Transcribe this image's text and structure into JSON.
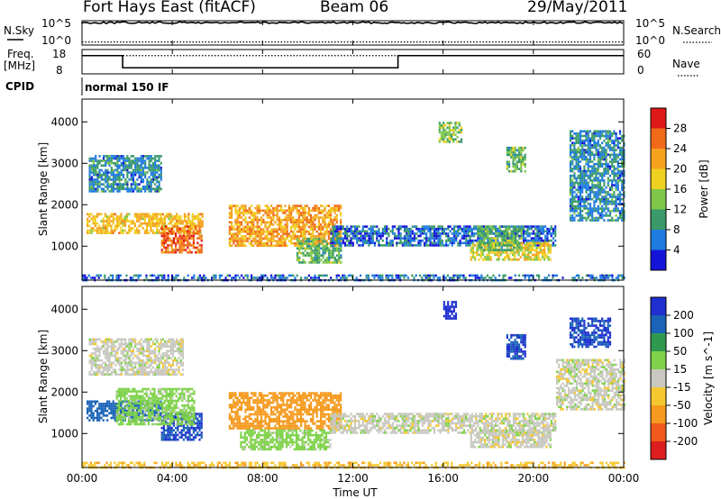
{
  "header": {
    "station": "Fort Hays East (fitACF)",
    "beam": "Beam 06",
    "date": "29/May/2011"
  },
  "status_panels": {
    "nsky_label": "N.Sky",
    "nsky_ticks": [
      "10^5",
      "10^0"
    ],
    "nsearch_label": "N.Search",
    "nsearch_ticks": [
      "10^5",
      "10^0"
    ],
    "freq_label_line1": "Freq.",
    "freq_label_line2": "[MHz]",
    "freq_ticks": [
      "18",
      "8"
    ],
    "nave_label": "Nave",
    "nave_ticks": [
      "60",
      "0"
    ],
    "cpid_label": "CPID",
    "cpid_value": "normal 150 IF",
    "freq_series": {
      "segments": [
        {
          "start_hour": 0.0,
          "end_hour": 1.8,
          "mhz": 15.5
        },
        {
          "start_hour": 1.8,
          "end_hour": 14.0,
          "mhz": 10.5
        },
        {
          "start_hour": 14.0,
          "end_hour": 24.0,
          "mhz": 15.5
        }
      ]
    },
    "nave_level": 45,
    "nsky_level": 0.92,
    "nsearch_level": 0.05
  },
  "axes": {
    "x_ticks": [
      "00:00",
      "04:00",
      "08:00",
      "12:00",
      "16:00",
      "20:00",
      "00:00"
    ],
    "x_label": "Time UT",
    "y_label": "Slant Range [km]",
    "y_ticks": [
      "1000",
      "2000",
      "3000",
      "4000"
    ]
  },
  "colorbars": {
    "power": {
      "label": "Power [dB]",
      "ticks": [
        "4",
        "8",
        "12",
        "16",
        "20",
        "24",
        "28"
      ],
      "colors": [
        "#1414d8",
        "#1e7be0",
        "#3a9a6a",
        "#7fc74a",
        "#f0d020",
        "#f5a21e",
        "#f06a1a",
        "#e01818"
      ]
    },
    "velocity": {
      "label": "Velocity [m s^-1]",
      "ticks": [
        "200",
        "100",
        "50",
        "15",
        "-15",
        "-50",
        "-100",
        "-200"
      ],
      "colors": [
        "#1f2fd0",
        "#1a63b8",
        "#2f9a4f",
        "#7fd24a",
        "#c8c8c0",
        "#f5c830",
        "#f59a1e",
        "#f05a1a",
        "#dc1e1e"
      ]
    }
  },
  "chart_data": [
    {
      "type": "heatmap",
      "title": "Power [dB]",
      "xlabel": "Time UT",
      "ylabel": "Slant Range [km]",
      "xlim": [
        "00:00",
        "24:00"
      ],
      "ylim": [
        180,
        4550
      ],
      "regions": [
        {
          "t0": 0.0,
          "t1": 24.0,
          "r0": 180,
          "r1": 320,
          "power": 6
        },
        {
          "t0": 0.2,
          "t1": 5.3,
          "r0": 1300,
          "r1": 1800,
          "power": 20
        },
        {
          "t0": 3.5,
          "t1": 5.3,
          "r0": 850,
          "r1": 1500,
          "power": 26
        },
        {
          "t0": 0.3,
          "t1": 3.5,
          "r0": 2300,
          "r1": 3200,
          "power": 8
        },
        {
          "t0": 6.5,
          "t1": 11.5,
          "r0": 1000,
          "r1": 2000,
          "power": 22
        },
        {
          "t0": 9.5,
          "t1": 11.5,
          "r0": 600,
          "r1": 1200,
          "power": 12
        },
        {
          "t0": 11.0,
          "t1": 21.0,
          "r0": 1000,
          "r1": 1500,
          "power": 6
        },
        {
          "t0": 17.2,
          "t1": 20.8,
          "r0": 700,
          "r1": 1100,
          "power": 18
        },
        {
          "t0": 17.5,
          "t1": 19.5,
          "r0": 900,
          "r1": 1500,
          "power": 12
        },
        {
          "t0": 15.8,
          "t1": 16.8,
          "r0": 3500,
          "r1": 4000,
          "power": 14
        },
        {
          "t0": 18.8,
          "t1": 19.6,
          "r0": 2800,
          "r1": 3400,
          "power": 12
        },
        {
          "t0": 21.6,
          "t1": 24.0,
          "r0": 1600,
          "r1": 3800,
          "power": 8
        }
      ]
    },
    {
      "type": "heatmap",
      "title": "Velocity [m s^-1]",
      "xlabel": "Time UT",
      "ylabel": "Slant Range [km]",
      "xlim": [
        "00:00",
        "24:00"
      ],
      "ylim": [
        180,
        4550
      ],
      "regions": [
        {
          "t0": 0.0,
          "t1": 24.0,
          "r0": 180,
          "r1": 320,
          "velocity": -40
        },
        {
          "t0": 0.2,
          "t1": 3.5,
          "r0": 1300,
          "r1": 1800,
          "velocity": 150
        },
        {
          "t0": 3.5,
          "t1": 5.3,
          "r0": 850,
          "r1": 1500,
          "velocity": 200
        },
        {
          "t0": 0.3,
          "t1": 4.5,
          "r0": 2400,
          "r1": 3300,
          "velocity": 0
        },
        {
          "t0": 1.5,
          "t1": 5.0,
          "r0": 1200,
          "r1": 2100,
          "velocity": 30
        },
        {
          "t0": 6.5,
          "t1": 11.5,
          "r0": 1100,
          "r1": 2000,
          "velocity": -80
        },
        {
          "t0": 7.0,
          "t1": 11.0,
          "r0": 600,
          "r1": 1100,
          "velocity": 30
        },
        {
          "t0": 11.0,
          "t1": 21.0,
          "r0": 1000,
          "r1": 1500,
          "velocity": 0
        },
        {
          "t0": 17.2,
          "t1": 20.8,
          "r0": 700,
          "r1": 1100,
          "velocity": 0
        },
        {
          "t0": 16.0,
          "t1": 16.6,
          "r0": 3800,
          "r1": 4200,
          "velocity": 220
        },
        {
          "t0": 18.8,
          "t1": 19.6,
          "r0": 2800,
          "r1": 3400,
          "velocity": 200
        },
        {
          "t0": 21.6,
          "t1": 23.4,
          "r0": 3100,
          "r1": 3800,
          "velocity": 200
        },
        {
          "t0": 21.0,
          "t1": 24.0,
          "r0": 1600,
          "r1": 2800,
          "velocity": 0
        }
      ]
    }
  ]
}
